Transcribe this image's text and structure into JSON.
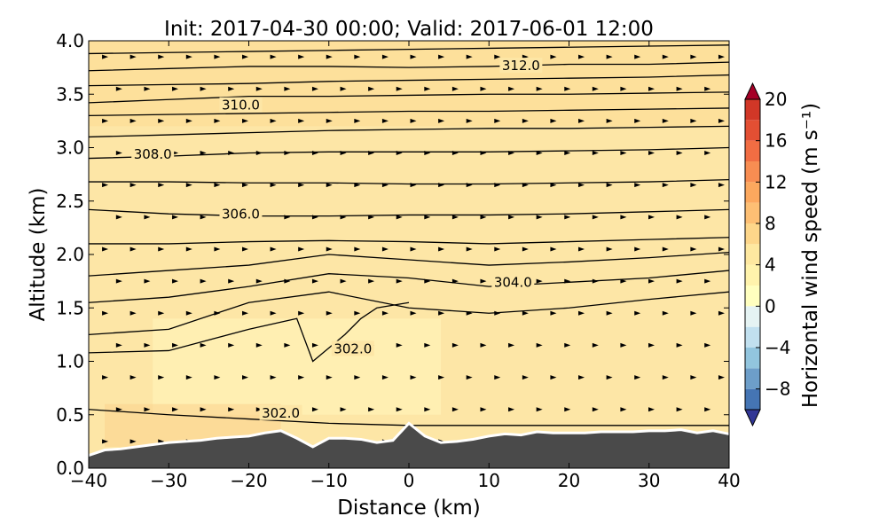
{
  "chart_data": {
    "type": "heatmap",
    "title": "Init: 2017-04-30 00:00; Valid: 2017-06-01 12:00",
    "xlabel": "Distance (km)",
    "ylabel": "Altitude (km)",
    "xlim": [
      -40,
      40
    ],
    "ylim": [
      0,
      4
    ],
    "x_ticks": [
      -40,
      -30,
      -20,
      -10,
      0,
      10,
      20,
      30,
      40
    ],
    "x_tick_labels": [
      "−40",
      "−30",
      "−20",
      "−10",
      "0",
      "10",
      "20",
      "30",
      "40"
    ],
    "y_ticks": [
      0,
      0.5,
      1,
      1.5,
      2,
      2.5,
      3,
      3.5,
      4
    ],
    "y_tick_labels": [
      "0.0",
      "0.5",
      "1.0",
      "1.5",
      "2.0",
      "2.5",
      "3.0",
      "3.5",
      "4.0"
    ],
    "filled_field": "Horizontal wind speed",
    "field_range_estimate": [
      2,
      6
    ],
    "background_fill": "#fde6a6",
    "grid": false,
    "colorbar": {
      "label": "Horizontal wind speed (m s⁻¹)",
      "min": -10,
      "max": 20,
      "step": 2,
      "tick_values": [
        -8,
        -4,
        0,
        4,
        8,
        12,
        16,
        20
      ],
      "tick_labels": [
        "−8",
        "−4",
        "0",
        "4",
        "8",
        "12",
        "16",
        "20"
      ],
      "colors": [
        "#313695",
        "#4575b4",
        "#6d9ec9",
        "#92c5de",
        "#c1e0ef",
        "#e5f3f3",
        "#ffffbf",
        "#fff3ac",
        "#fee8a0",
        "#fdd68a",
        "#fdbf74",
        "#fca85e",
        "#f88d52",
        "#f16d43",
        "#e34f33",
        "#d13727",
        "#b81f25",
        "#a50026"
      ],
      "extend": "both"
    },
    "terrain": {
      "color": "#4a4a4a",
      "x": [
        -40,
        -38,
        -36,
        -34,
        -32,
        -30,
        -28,
        -26,
        -24,
        -22,
        -20,
        -18,
        -16,
        -14,
        -12,
        -10,
        -8,
        -6,
        -4,
        -2,
        0,
        2,
        4,
        6,
        8,
        10,
        12,
        14,
        16,
        18,
        20,
        22,
        24,
        26,
        28,
        30,
        32,
        34,
        36,
        38,
        40
      ],
      "height_km": [
        0.12,
        0.17,
        0.18,
        0.2,
        0.22,
        0.24,
        0.25,
        0.26,
        0.28,
        0.29,
        0.3,
        0.33,
        0.35,
        0.28,
        0.2,
        0.28,
        0.28,
        0.27,
        0.24,
        0.26,
        0.42,
        0.3,
        0.24,
        0.25,
        0.27,
        0.3,
        0.32,
        0.31,
        0.34,
        0.33,
        0.33,
        0.33,
        0.34,
        0.34,
        0.34,
        0.35,
        0.35,
        0.36,
        0.33,
        0.35,
        0.32
      ]
    },
    "contours": {
      "variable": "potential temperature (K)",
      "levels": [
        {
          "value": 302.0,
          "label": "302.0",
          "label_x": -16,
          "label_y": 0.5,
          "x": [
            -40,
            -30,
            -20,
            -10,
            0,
            10,
            20,
            30,
            40
          ],
          "y": [
            0.55,
            0.5,
            0.46,
            0.42,
            0.4,
            0.4,
            0.4,
            0.4,
            0.4
          ]
        },
        {
          "value": 302.0,
          "label": "302.0",
          "label_x": -7,
          "label_y": 1.1,
          "x": [
            -40,
            -30,
            -20,
            -14,
            -12,
            -8,
            -6,
            -4,
            0
          ],
          "y": [
            1.08,
            1.1,
            1.3,
            1.4,
            1.0,
            1.25,
            1.4,
            1.5,
            1.55
          ]
        },
        {
          "value": 304.0,
          "label": "",
          "label_x": null,
          "label_y": null,
          "x": [
            -40,
            -30,
            -20,
            -10,
            0,
            10,
            20,
            30,
            40
          ],
          "y": [
            1.25,
            1.3,
            1.55,
            1.65,
            1.5,
            1.45,
            1.5,
            1.58,
            1.65
          ]
        },
        {
          "value": 304.0,
          "label": "304.0",
          "label_x": 13,
          "label_y": 1.72,
          "x": [
            -40,
            -30,
            -20,
            -10,
            0,
            10,
            20,
            30,
            40
          ],
          "y": [
            1.55,
            1.6,
            1.7,
            1.82,
            1.78,
            1.7,
            1.74,
            1.78,
            1.85
          ]
        },
        {
          "value": 305.0,
          "label": "",
          "label_x": null,
          "label_y": null,
          "x": [
            -40,
            -30,
            -20,
            -10,
            0,
            10,
            20,
            30,
            40
          ],
          "y": [
            1.8,
            1.85,
            1.9,
            2.0,
            1.95,
            1.9,
            1.93,
            1.97,
            2.02
          ]
        },
        {
          "value": 305.5,
          "label": "",
          "label_x": null,
          "label_y": null,
          "x": [
            -40,
            -30,
            -20,
            -10,
            0,
            10,
            20,
            30,
            40
          ],
          "y": [
            2.1,
            2.1,
            2.12,
            2.13,
            2.12,
            2.1,
            2.12,
            2.14,
            2.16
          ]
        },
        {
          "value": 306.0,
          "label": "306.0",
          "label_x": -21,
          "label_y": 2.36,
          "x": [
            -40,
            -30,
            -20,
            -10,
            0,
            10,
            20,
            30,
            40
          ],
          "y": [
            2.42,
            2.38,
            2.36,
            2.36,
            2.37,
            2.37,
            2.38,
            2.4,
            2.42
          ]
        },
        {
          "value": 307.0,
          "label": "",
          "label_x": null,
          "label_y": null,
          "x": [
            -40,
            -30,
            -20,
            -10,
            0,
            10,
            20,
            30,
            40
          ],
          "y": [
            2.68,
            2.68,
            2.67,
            2.67,
            2.66,
            2.66,
            2.67,
            2.68,
            2.7
          ]
        },
        {
          "value": 308.0,
          "label": "308.0",
          "label_x": -32,
          "label_y": 2.92,
          "x": [
            -40,
            -30,
            -20,
            -10,
            0,
            10,
            20,
            30,
            40
          ],
          "y": [
            2.9,
            2.92,
            2.95,
            2.96,
            2.96,
            2.96,
            2.97,
            2.98,
            3.0
          ]
        },
        {
          "value": 308.5,
          "label": "",
          "label_x": null,
          "label_y": null,
          "x": [
            -40,
            -30,
            -20,
            -10,
            0,
            10,
            20,
            30,
            40
          ],
          "y": [
            3.1,
            3.12,
            3.14,
            3.16,
            3.17,
            3.18,
            3.18,
            3.19,
            3.2
          ]
        },
        {
          "value": 309.5,
          "label": "",
          "label_x": null,
          "label_y": null,
          "x": [
            -40,
            -30,
            -20,
            -10,
            0,
            10,
            20,
            30,
            40
          ],
          "y": [
            3.3,
            3.31,
            3.32,
            3.33,
            3.34,
            3.34,
            3.35,
            3.36,
            3.37
          ]
        },
        {
          "value": 310.0,
          "label": "310.0",
          "label_x": -21,
          "label_y": 3.38,
          "x": [
            -40,
            -30,
            -20,
            -10,
            0,
            10,
            20,
            30,
            40
          ],
          "y": [
            3.42,
            3.45,
            3.48,
            3.48,
            3.49,
            3.5,
            3.5,
            3.51,
            3.52
          ]
        },
        {
          "value": 311.0,
          "label": "",
          "label_x": null,
          "label_y": null,
          "x": [
            -40,
            -30,
            -20,
            -10,
            0,
            10,
            20,
            30,
            40
          ],
          "y": [
            3.58,
            3.59,
            3.6,
            3.62,
            3.63,
            3.64,
            3.65,
            3.66,
            3.68
          ]
        },
        {
          "value": 312.0,
          "label": "312.0",
          "label_x": 14,
          "label_y": 3.75,
          "x": [
            -40,
            -30,
            -20,
            -10,
            0,
            10,
            20,
            30,
            40
          ],
          "y": [
            3.72,
            3.74,
            3.76,
            3.76,
            3.75,
            3.76,
            3.78,
            3.78,
            3.8
          ]
        },
        {
          "value": 313.0,
          "label": "",
          "label_x": null,
          "label_y": null,
          "x": [
            -40,
            -30,
            -20,
            -10,
            0,
            10,
            20,
            30,
            40
          ],
          "y": [
            3.88,
            3.89,
            3.9,
            3.91,
            3.92,
            3.93,
            3.94,
            3.95,
            3.96
          ]
        }
      ]
    },
    "wind_arrows": {
      "x_spacing_km": 3.5,
      "y_spacing_km": 0.3,
      "dominant_direction": "left-to-right"
    }
  }
}
